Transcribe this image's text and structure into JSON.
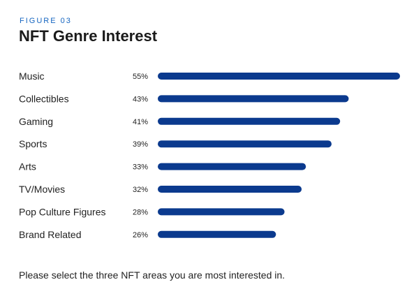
{
  "figure_label": "FIGURE 03",
  "title": "NFT Genre Interest",
  "footnote": "Please select the three NFT areas you are most interested in.",
  "colors": {
    "bar": "#0b3a8e",
    "accent": "#1565c0"
  },
  "chart_data": {
    "type": "bar",
    "orientation": "horizontal",
    "categories": [
      "Music",
      "Collectibles",
      "Gaming",
      "Sports",
      "Arts",
      "TV/Movies",
      "Pop Culture Figures",
      "Brand Related"
    ],
    "values": [
      55,
      43,
      41,
      39,
      33,
      32,
      28,
      26
    ],
    "value_labels": [
      "55%",
      "43%",
      "41%",
      "39%",
      "33%",
      "32%",
      "28%",
      "26%"
    ],
    "unit": "%",
    "grid": false
  }
}
